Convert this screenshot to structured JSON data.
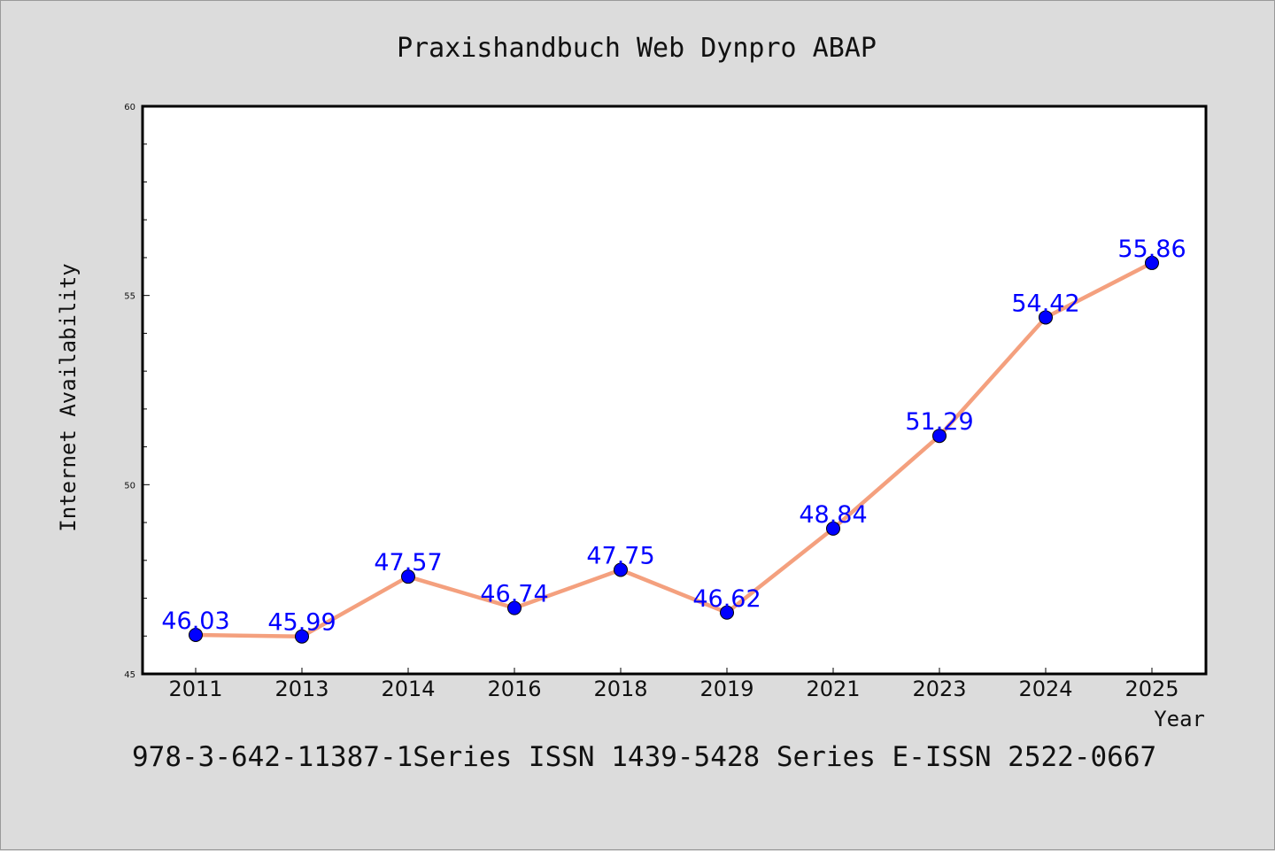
{
  "chart_data": {
    "type": "line",
    "title": "Praxishandbuch Web Dynpro ABAP",
    "xlabel": "Year",
    "ylabel": "Internet Availability",
    "footer": "978-3-642-11387-1Series ISSN 1439-5428 Series E-ISSN 2522-0667",
    "categories": [
      "2011",
      "2013",
      "2014",
      "2016",
      "2018",
      "2019",
      "2021",
      "2023",
      "2024",
      "2025"
    ],
    "values": [
      46.03,
      45.99,
      47.57,
      46.74,
      47.75,
      46.62,
      48.84,
      51.29,
      54.42,
      55.86
    ],
    "data_labels": [
      "46.03",
      "45.99",
      "47.57",
      "46.74",
      "47.75",
      "46.62",
      "48.84",
      "51.29",
      "54.42",
      "55.86"
    ],
    "ylim": [
      45,
      60
    ],
    "yticks": [
      "45",
      "50",
      "55",
      "60"
    ],
    "grid": false,
    "legend": "none",
    "colors": {
      "line": "#f4a07e",
      "marker": "#0000ff",
      "label": "#0000ff",
      "plot_bg": "#ffffff",
      "page_bg": "#dcdcdc"
    }
  }
}
